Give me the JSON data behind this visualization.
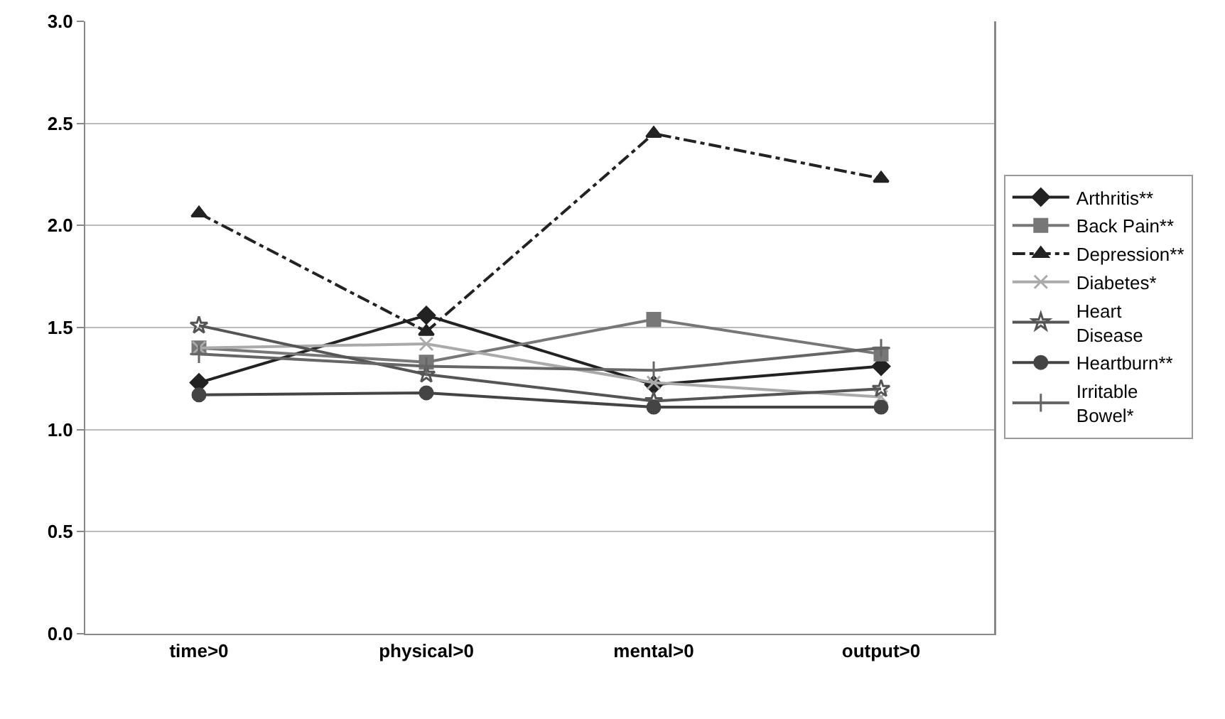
{
  "chart_data": {
    "type": "line",
    "categories": [
      "time>0",
      "physical>0",
      "mental>0",
      "output>0"
    ],
    "series": [
      {
        "name": "Arthritis**",
        "color": "#222222",
        "marker": "diamond",
        "values": [
          1.23,
          1.56,
          1.22,
          1.31
        ]
      },
      {
        "name": "Back Pain**",
        "color": "#777777",
        "marker": "square",
        "values": [
          1.4,
          1.33,
          1.54,
          1.37
        ]
      },
      {
        "name": "Depression**",
        "color": "#222222",
        "marker": "triangle",
        "line_style": "dashed",
        "values": [
          2.06,
          1.48,
          2.45,
          2.23
        ]
      },
      {
        "name": "Diabetes*",
        "color": "#aaaaaa",
        "marker": "cross",
        "values": [
          1.4,
          1.42,
          1.23,
          1.16
        ]
      },
      {
        "name": "Heart Disease",
        "color": "#555555",
        "marker": "star",
        "values": [
          1.51,
          1.27,
          1.14,
          1.2
        ]
      },
      {
        "name": "Heartburn**",
        "color": "#444444",
        "marker": "circle",
        "values": [
          1.17,
          1.18,
          1.11,
          1.11
        ]
      },
      {
        "name": "Irritable Bowel*",
        "color": "#666666",
        "marker": "plus",
        "values": [
          1.37,
          1.31,
          1.29,
          1.4
        ]
      }
    ],
    "ylim": [
      0,
      3
    ],
    "yticks": [
      {
        "value": 0,
        "label": "0.0"
      },
      {
        "value": 0.5,
        "label": "0.5"
      },
      {
        "value": 1,
        "label": "1.0"
      },
      {
        "value": 1.5,
        "label": "1.5"
      },
      {
        "value": 2,
        "label": "2.0"
      },
      {
        "value": 2.5,
        "label": "2.5"
      },
      {
        "value": 3,
        "label": "3.0"
      }
    ],
    "grid": "y",
    "legend": "right"
  }
}
